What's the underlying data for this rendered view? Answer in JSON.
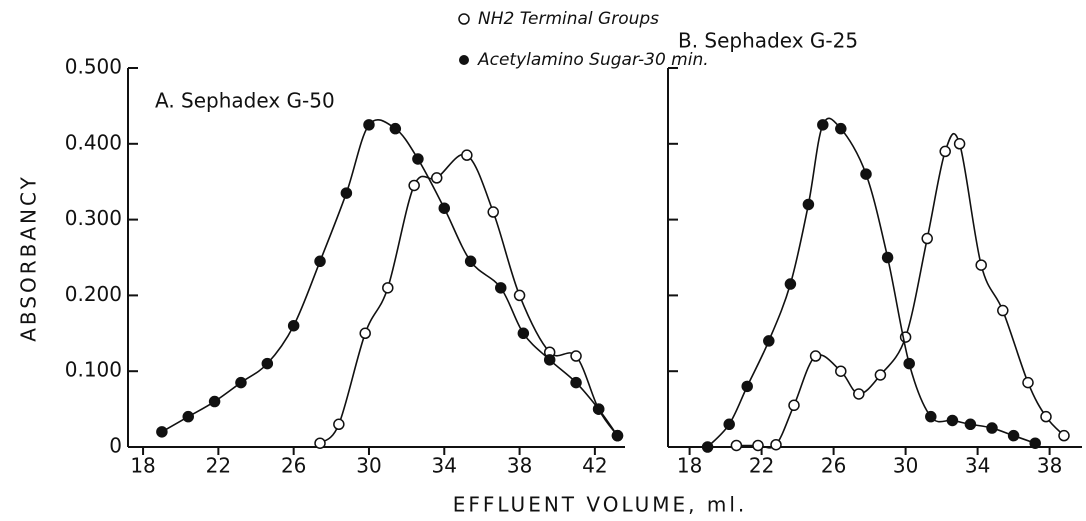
{
  "chart_data": [
    {
      "type": "line",
      "title": "A. Sephadex G-50",
      "ylabel": "ABSORBANCY",
      "xlabel": "EFFLUENT VOLUME, ml.",
      "xlim": [
        17.2,
        43.6
      ],
      "xticks": [
        18,
        22,
        26,
        30,
        34,
        38,
        42
      ],
      "ylim": [
        0,
        0.5
      ],
      "yticks": [
        0,
        {
          "value": 0.1,
          "label": "0.100"
        },
        {
          "value": 0.2,
          "label": "0.200"
        },
        {
          "value": 0.3,
          "label": "0.300"
        },
        {
          "value": 0.4,
          "label": "0.400"
        },
        {
          "value": 0.5,
          "label": "0.500"
        }
      ],
      "series": [
        {
          "name": "NH2 Terminal Groups",
          "color": "#111111",
          "marker": "open",
          "x": [
            27.4,
            28.4,
            29.8,
            31,
            32.4,
            33.6,
            35.2,
            36.6,
            38,
            39.6,
            41,
            42.2,
            43.2
          ],
          "values": [
            0.005,
            0.03,
            0.15,
            0.21,
            0.345,
            0.355,
            0.385,
            0.31,
            0.2,
            0.125,
            0.12,
            0.05,
            0.015
          ]
        },
        {
          "name": "Acetylamino Sugar-30 min.",
          "color": "#111111",
          "marker": "filled",
          "x": [
            19,
            20.4,
            21.8,
            23.2,
            24.6,
            26,
            27.4,
            28.8,
            30,
            31.4,
            32.6,
            34,
            35.4,
            37,
            38.2,
            39.6,
            41,
            42.2,
            43.2
          ],
          "values": [
            0.02,
            0.04,
            0.06,
            0.085,
            0.11,
            0.16,
            0.245,
            0.335,
            0.425,
            0.42,
            0.38,
            0.315,
            0.245,
            0.21,
            0.15,
            0.115,
            0.085,
            0.05,
            0.015
          ]
        }
      ]
    },
    {
      "type": "line",
      "title": "B. Sephadex G-25",
      "xlim": [
        16.8,
        39.8
      ],
      "xticks": [
        18,
        22,
        26,
        30,
        34,
        38
      ],
      "ylim": [
        0,
        0.5
      ],
      "series": [
        {
          "color": "#111111",
          "marker": "open",
          "x": [
            20.6,
            21.8,
            22.8,
            23.8,
            25,
            26.4,
            27.4,
            28.6,
            30,
            31.2,
            32.2,
            33,
            34.2,
            35.4,
            36.8,
            37.8,
            38.8
          ],
          "values": [
            0.002,
            0.002,
            0.003,
            0.055,
            0.12,
            0.1,
            0.07,
            0.095,
            0.145,
            0.275,
            0.39,
            0.4,
            0.24,
            0.18,
            0.085,
            0.04,
            0.015
          ]
        },
        {
          "color": "#111111",
          "marker": "filled",
          "x": [
            19,
            20.2,
            21.2,
            22.4,
            23.6,
            24.6,
            25.4,
            26.4,
            27.8,
            29,
            30.2,
            31.4,
            32.6,
            33.6,
            34.8,
            36,
            37.2
          ],
          "values": [
            0.0,
            0.03,
            0.08,
            0.14,
            0.215,
            0.32,
            0.425,
            0.42,
            0.36,
            0.25,
            0.11,
            0.04,
            0.035,
            0.03,
            0.025,
            0.015,
            0.005
          ]
        }
      ]
    }
  ]
}
